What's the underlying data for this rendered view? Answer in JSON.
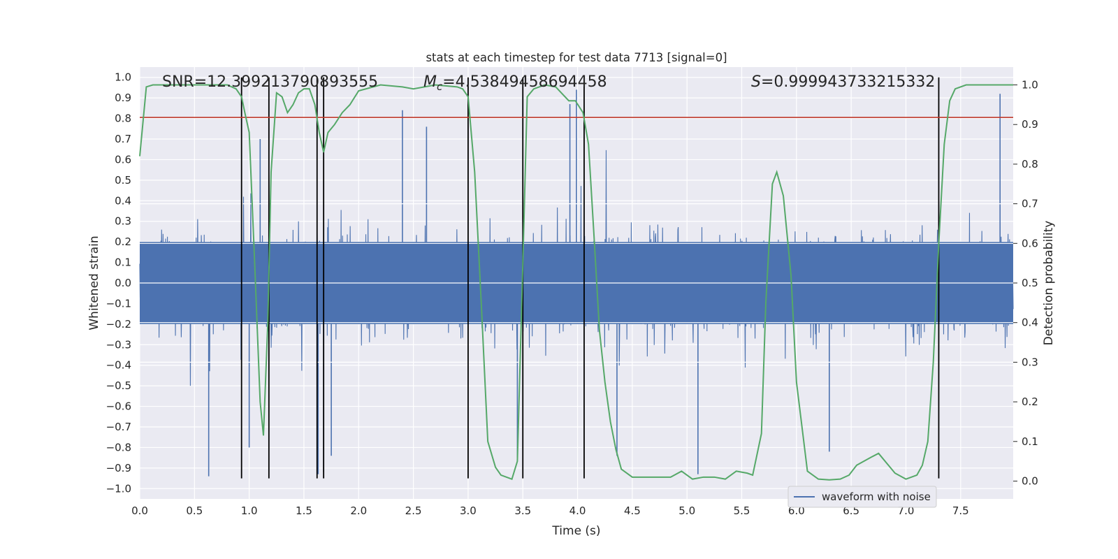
{
  "chart_data": {
    "type": "line",
    "title": "stats at each timestep for test data 7713 [signal=0]",
    "xlabel": "Time (s)",
    "ylabel": "Whitened strain",
    "y2label": "Detection probability",
    "xlim": [
      0,
      7.98
    ],
    "ylim": [
      -1.05,
      1.05
    ],
    "y2lim": [
      -0.045,
      1.045
    ],
    "x_ticks": [
      0.0,
      0.5,
      1.0,
      1.5,
      2.0,
      2.5,
      3.0,
      3.5,
      4.0,
      4.5,
      5.0,
      5.5,
      6.0,
      6.5,
      7.0,
      7.5
    ],
    "x_tick_labels": [
      "0.0",
      "0.5",
      "1.0",
      "1.5",
      "2.0",
      "2.5",
      "3.0",
      "3.5",
      "4.0",
      "4.5",
      "5.0",
      "5.5",
      "6.0",
      "6.5",
      "7.0",
      "7.5"
    ],
    "y_ticks": [
      1.0,
      0.9,
      0.8,
      0.7,
      0.6,
      0.5,
      0.4,
      0.3,
      0.2,
      0.1,
      0.0,
      -0.1,
      -0.2,
      -0.3,
      -0.4,
      -0.5,
      -0.6,
      -0.7,
      -0.8,
      -0.9,
      -1.0
    ],
    "y_tick_labels": [
      "1.0",
      "0.9",
      "0.8",
      "0.7",
      "0.6",
      "0.5",
      "0.4",
      "0.3",
      "0.2",
      "0.1",
      "0.0",
      "−0.1",
      "−0.2",
      "−0.3",
      "−0.4",
      "−0.5",
      "−0.6",
      "−0.7",
      "−0.8",
      "−0.9",
      "−1.0"
    ],
    "y2_ticks": [
      1.0,
      0.9,
      0.8,
      0.7,
      0.6,
      0.5,
      0.4,
      0.3,
      0.2,
      0.1,
      0.0
    ],
    "y2_tick_labels": [
      "1.0",
      "0.9",
      "0.8",
      "0.7",
      "0.6",
      "0.5",
      "0.4",
      "0.3",
      "0.2",
      "0.1",
      "0.0"
    ],
    "grid": true,
    "legend": {
      "position": "bottom-right",
      "entries": [
        "waveform with noise"
      ]
    },
    "annotations": {
      "snr": "SNR=12.399213790893555",
      "mc_symbol": "M",
      "mc_subscript": "c",
      "mc_value": "=4.53849458694458",
      "s_symbol": "S",
      "s_value": "=0.999943733215332"
    },
    "series": [
      {
        "name": "waveform with noise",
        "axis": "left",
        "envelope_typical": 0.35,
        "envelope_peaks": [
          [
            0.63,
            -0.94
          ],
          [
            1.0,
            -0.8
          ],
          [
            1.63,
            -0.93
          ],
          [
            1.68,
            -0.92
          ],
          [
            1.75,
            -0.84
          ],
          [
            2.4,
            0.84
          ],
          [
            3.45,
            -0.85
          ],
          [
            3.93,
            0.87
          ],
          [
            3.99,
            0.94
          ],
          [
            5.1,
            -0.93
          ],
          [
            7.86,
            0.92
          ],
          [
            6.3,
            -0.82
          ],
          [
            4.36,
            -0.84
          ],
          [
            1.1,
            0.7
          ],
          [
            2.62,
            0.76
          ]
        ]
      },
      {
        "name": "",
        "axis": "right",
        "x": [
          0.0,
          0.06,
          0.12,
          0.2,
          0.4,
          0.6,
          0.8,
          0.88,
          0.93,
          0.96,
          1.0,
          1.05,
          1.1,
          1.13,
          1.17,
          1.2,
          1.25,
          1.3,
          1.35,
          1.4,
          1.45,
          1.5,
          1.55,
          1.6,
          1.64,
          1.68,
          1.72,
          1.78,
          1.85,
          1.92,
          2.0,
          2.2,
          2.4,
          2.5,
          2.6,
          2.7,
          2.9,
          2.95,
          3.0,
          3.06,
          3.12,
          3.18,
          3.25,
          3.3,
          3.4,
          3.45,
          3.5,
          3.54,
          3.6,
          3.7,
          3.8,
          3.92,
          3.98,
          4.05,
          4.1,
          4.15,
          4.2,
          4.25,
          4.3,
          4.35,
          4.4,
          4.5,
          4.7,
          4.85,
          4.95,
          5.05,
          5.15,
          5.25,
          5.35,
          5.45,
          5.55,
          5.6,
          5.68,
          5.72,
          5.78,
          5.82,
          5.88,
          5.95,
          6.0,
          6.1,
          6.2,
          6.3,
          6.4,
          6.48,
          6.55,
          6.68,
          6.75,
          6.9,
          7.0,
          7.1,
          7.15,
          7.2,
          7.25,
          7.3,
          7.35,
          7.4,
          7.45,
          7.55,
          7.98
        ],
        "y": [
          0.82,
          0.995,
          1.0,
          1.0,
          1.0,
          1.0,
          1.0,
          0.99,
          0.97,
          0.93,
          0.88,
          0.55,
          0.2,
          0.115,
          0.4,
          0.78,
          0.98,
          0.97,
          0.93,
          0.95,
          0.98,
          0.99,
          0.99,
          0.95,
          0.88,
          0.83,
          0.88,
          0.9,
          0.93,
          0.95,
          0.985,
          1.0,
          0.995,
          0.99,
          0.995,
          1.0,
          0.995,
          0.99,
          0.97,
          0.78,
          0.45,
          0.1,
          0.035,
          0.015,
          0.005,
          0.05,
          0.55,
          0.97,
          0.99,
          1.0,
          0.995,
          0.96,
          0.96,
          0.93,
          0.85,
          0.62,
          0.38,
          0.25,
          0.15,
          0.08,
          0.03,
          0.01,
          0.01,
          0.01,
          0.025,
          0.005,
          0.01,
          0.01,
          0.005,
          0.025,
          0.02,
          0.015,
          0.12,
          0.45,
          0.75,
          0.78,
          0.72,
          0.52,
          0.25,
          0.025,
          0.005,
          0.003,
          0.005,
          0.015,
          0.04,
          0.06,
          0.07,
          0.02,
          0.005,
          0.015,
          0.04,
          0.1,
          0.3,
          0.6,
          0.85,
          0.96,
          0.99,
          1.0,
          1.0
        ]
      }
    ],
    "hlines": [
      {
        "axis": "left",
        "y": 0.805,
        "color": "#c0392b"
      }
    ],
    "vlines": {
      "x": [
        0.93,
        1.18,
        1.62,
        1.68,
        3.0,
        3.5,
        4.06,
        7.3
      ],
      "ymin": -0.95,
      "ymax": 1.0,
      "color": "#000000"
    },
    "colors": {
      "axes_bg": "#eaeaf2",
      "grid": "#ffffff",
      "waveform": "#4c72b0",
      "probability": "#55a868",
      "text": "#262626"
    }
  }
}
